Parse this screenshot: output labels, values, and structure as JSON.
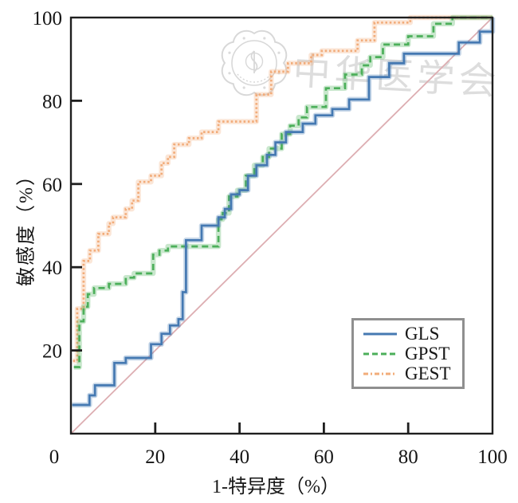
{
  "watermark": {
    "logo": "chinese-medical-association-seal",
    "text": "中华医学会"
  },
  "chart_data": {
    "type": "line",
    "subtype": "roc-step-curves",
    "title": "",
    "xlabel": "1-特异度（%）",
    "ylabel": "敏感度（%）",
    "xlim": [
      0,
      100
    ],
    "ylim": [
      0,
      100
    ],
    "xticks": [
      0,
      20,
      40,
      60,
      80,
      100
    ],
    "yticks": [
      0,
      20,
      40,
      60,
      80,
      100
    ],
    "grid": false,
    "legend": {
      "position": "lower-right",
      "entries": [
        "GLS",
        "GPST",
        "GEST"
      ],
      "border_color": "#8f8f8f"
    },
    "reference_line": {
      "from": [
        0,
        0
      ],
      "to": [
        100,
        100
      ],
      "color": "#ddaeb2"
    },
    "series": [
      {
        "name": "GLS",
        "style": "solid",
        "color": "#4579b2",
        "points": [
          [
            0.3,
            6.9
          ],
          [
            4.4,
            6.9
          ],
          [
            4.4,
            9.2
          ],
          [
            5.7,
            9.2
          ],
          [
            5.7,
            11.6
          ],
          [
            10.3,
            11.6
          ],
          [
            10.3,
            17
          ],
          [
            13,
            17
          ],
          [
            13,
            18.2
          ],
          [
            19,
            18.2
          ],
          [
            19,
            21.5
          ],
          [
            21.5,
            21.5
          ],
          [
            21.5,
            24
          ],
          [
            23.5,
            24
          ],
          [
            23.5,
            26
          ],
          [
            25.5,
            26
          ],
          [
            25.5,
            27.5
          ],
          [
            26.5,
            27.5
          ],
          [
            26.5,
            34
          ],
          [
            27.3,
            34
          ],
          [
            27.3,
            46.5
          ],
          [
            31,
            46.5
          ],
          [
            31,
            50
          ],
          [
            35,
            50
          ],
          [
            35,
            52
          ],
          [
            36.5,
            52
          ],
          [
            36.5,
            54
          ],
          [
            38,
            54
          ],
          [
            38,
            57.5
          ],
          [
            40,
            57.5
          ],
          [
            40,
            58.5
          ],
          [
            42,
            58.5
          ],
          [
            42,
            62
          ],
          [
            44,
            62
          ],
          [
            44,
            64.5
          ],
          [
            46.5,
            64.5
          ],
          [
            46.5,
            67
          ],
          [
            48.5,
            67
          ],
          [
            48.5,
            70
          ],
          [
            51,
            70
          ],
          [
            51,
            72.5
          ],
          [
            55,
            72.5
          ],
          [
            55,
            74.5
          ],
          [
            58,
            74.5
          ],
          [
            58,
            76.5
          ],
          [
            62,
            76.5
          ],
          [
            62,
            78
          ],
          [
            66,
            78
          ],
          [
            66,
            80.3
          ],
          [
            70.7,
            80.3
          ],
          [
            70.7,
            85.7
          ],
          [
            75.5,
            85.7
          ],
          [
            75.5,
            89
          ],
          [
            79,
            89
          ],
          [
            79,
            91.3
          ],
          [
            92,
            91.3
          ],
          [
            92,
            94
          ],
          [
            97,
            94
          ],
          [
            97,
            96.6
          ],
          [
            100,
            96.6
          ],
          [
            100,
            100
          ]
        ]
      },
      {
        "name": "GPST",
        "style": "dashed",
        "color": "#4caf5a",
        "points": [
          [
            0.7,
            16
          ],
          [
            2,
            16
          ],
          [
            2,
            27
          ],
          [
            3,
            27
          ],
          [
            3,
            30.5
          ],
          [
            4,
            30.5
          ],
          [
            4,
            33.5
          ],
          [
            5.5,
            33.5
          ],
          [
            5.5,
            35
          ],
          [
            9,
            35
          ],
          [
            9,
            36
          ],
          [
            13,
            36
          ],
          [
            13,
            37.5
          ],
          [
            15,
            37.5
          ],
          [
            15,
            38.5
          ],
          [
            19.5,
            38.5
          ],
          [
            19.5,
            43
          ],
          [
            21,
            43
          ],
          [
            21,
            44
          ],
          [
            23,
            44
          ],
          [
            23,
            45
          ],
          [
            35,
            45
          ],
          [
            35,
            51.5
          ],
          [
            36,
            51.5
          ],
          [
            36,
            53
          ],
          [
            37.5,
            53
          ],
          [
            37.5,
            57
          ],
          [
            39.5,
            57
          ],
          [
            39.5,
            58.5
          ],
          [
            41.5,
            58.5
          ],
          [
            41.5,
            62
          ],
          [
            43.5,
            62
          ],
          [
            43.5,
            64.5
          ],
          [
            45.5,
            64.5
          ],
          [
            45.5,
            66.5
          ],
          [
            47,
            66.5
          ],
          [
            47,
            68.5
          ],
          [
            50,
            68.5
          ],
          [
            50,
            72
          ],
          [
            52,
            72
          ],
          [
            52,
            74
          ],
          [
            54,
            74
          ],
          [
            54,
            76
          ],
          [
            56,
            76
          ],
          [
            56,
            78.5
          ],
          [
            60.5,
            78.5
          ],
          [
            60.5,
            83
          ],
          [
            65,
            83
          ],
          [
            65,
            86.3
          ],
          [
            69,
            86.3
          ],
          [
            69,
            88.5
          ],
          [
            71,
            88.5
          ],
          [
            71,
            90.5
          ],
          [
            74,
            90.5
          ],
          [
            74,
            93.5
          ],
          [
            80,
            93.5
          ],
          [
            80,
            95.5
          ],
          [
            86,
            95.5
          ],
          [
            86,
            98.5
          ],
          [
            90.5,
            98.5
          ],
          [
            90.5,
            100
          ],
          [
            100,
            100
          ]
        ]
      },
      {
        "name": "GEST",
        "style": "dotted",
        "color": "#f2ac7a",
        "points": [
          [
            0.5,
            17.5
          ],
          [
            1.5,
            17.5
          ],
          [
            1.5,
            30
          ],
          [
            3,
            30
          ],
          [
            3,
            41.5
          ],
          [
            4.5,
            41.5
          ],
          [
            4.5,
            44
          ],
          [
            6.5,
            44
          ],
          [
            6.5,
            48
          ],
          [
            9,
            48
          ],
          [
            9,
            50.5
          ],
          [
            10,
            50.5
          ],
          [
            10,
            52
          ],
          [
            13,
            52
          ],
          [
            13,
            54
          ],
          [
            14.5,
            54
          ],
          [
            14.5,
            56
          ],
          [
            16,
            56
          ],
          [
            16,
            60.5
          ],
          [
            19,
            60.5
          ],
          [
            19,
            62
          ],
          [
            21.5,
            62
          ],
          [
            21.5,
            65
          ],
          [
            23,
            65
          ],
          [
            23,
            66.5
          ],
          [
            24.5,
            66.5
          ],
          [
            24.5,
            69.5
          ],
          [
            28,
            69.5
          ],
          [
            28,
            71
          ],
          [
            31,
            71
          ],
          [
            31,
            72.5
          ],
          [
            35,
            72.5
          ],
          [
            35,
            75
          ],
          [
            44,
            75
          ],
          [
            44,
            81.5
          ],
          [
            47.5,
            81.5
          ],
          [
            47.5,
            87
          ],
          [
            51.5,
            87
          ],
          [
            51.5,
            89
          ],
          [
            57,
            89
          ],
          [
            57,
            91
          ],
          [
            59.5,
            91
          ],
          [
            59.5,
            92
          ],
          [
            68,
            92
          ],
          [
            68,
            94.5
          ],
          [
            72,
            94.5
          ],
          [
            72,
            98.8
          ],
          [
            80.5,
            98.8
          ],
          [
            80.5,
            100
          ],
          [
            100,
            100
          ]
        ]
      }
    ]
  }
}
